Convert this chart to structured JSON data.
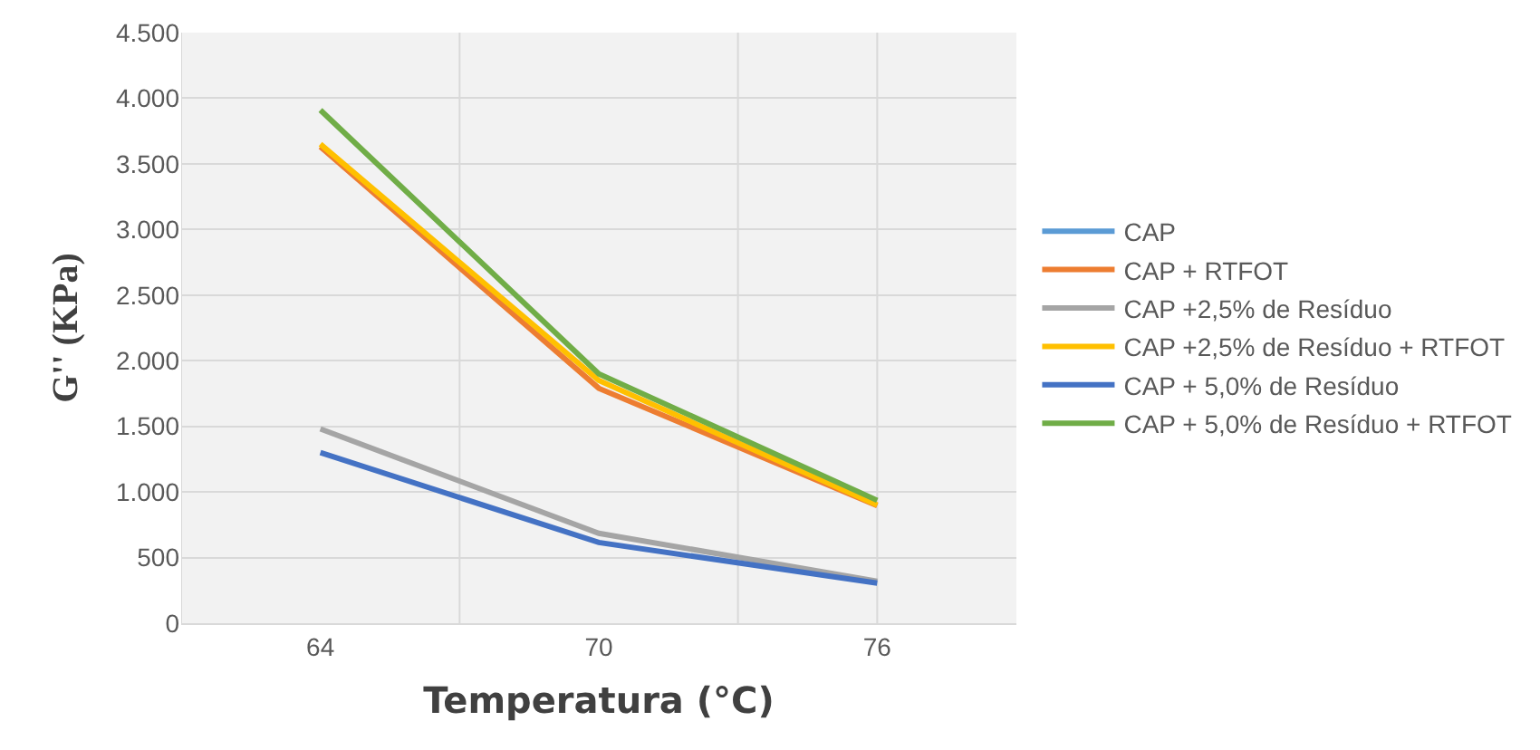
{
  "chart_data": {
    "type": "line",
    "xlabel": "Temperatura (°C)",
    "ylabel": "G'' (KPa)",
    "categories": [
      "64",
      "70",
      "76"
    ],
    "series": [
      {
        "name": "CAP",
        "color": "#5b9bd5",
        "values": [
          null,
          null,
          null
        ]
      },
      {
        "name": "CAP + RTFOT",
        "color": "#ed7d31",
        "values": [
          3630,
          1790,
          895
        ]
      },
      {
        "name": "CAP +2,5% de Resíduo",
        "color": "#a5a5a5",
        "values": [
          1480,
          685,
          320
        ]
      },
      {
        "name": "CAP +2,5% de Resíduo + RTFOT",
        "color": "#ffc000",
        "values": [
          3650,
          1850,
          900
        ]
      },
      {
        "name": "CAP + 5,0% de Resíduo",
        "color": "#4472c4",
        "values": [
          1300,
          615,
          305
        ]
      },
      {
        "name": "CAP + 5,0% de Resíduo + RTFOT",
        "color": "#70ad47",
        "values": [
          3910,
          1900,
          936
        ]
      }
    ],
    "ylim": [
      0,
      4500
    ],
    "yticks": [
      0,
      {
        "value": 500,
        "label": "500"
      },
      {
        "value": 1000,
        "label": "1.000"
      },
      {
        "value": 1500,
        "label": "1.500"
      },
      {
        "value": 2000,
        "label": "2.000"
      },
      {
        "value": 2500,
        "label": "2.500"
      },
      {
        "value": 3000,
        "label": "3.000"
      },
      {
        "value": 3500,
        "label": "3.500"
      },
      {
        "value": 4000,
        "label": "4.000"
      },
      {
        "value": 4500,
        "label": "4.500"
      }
    ],
    "grid": true,
    "legend": "right",
    "marker": "none",
    "line_style": "solid"
  }
}
